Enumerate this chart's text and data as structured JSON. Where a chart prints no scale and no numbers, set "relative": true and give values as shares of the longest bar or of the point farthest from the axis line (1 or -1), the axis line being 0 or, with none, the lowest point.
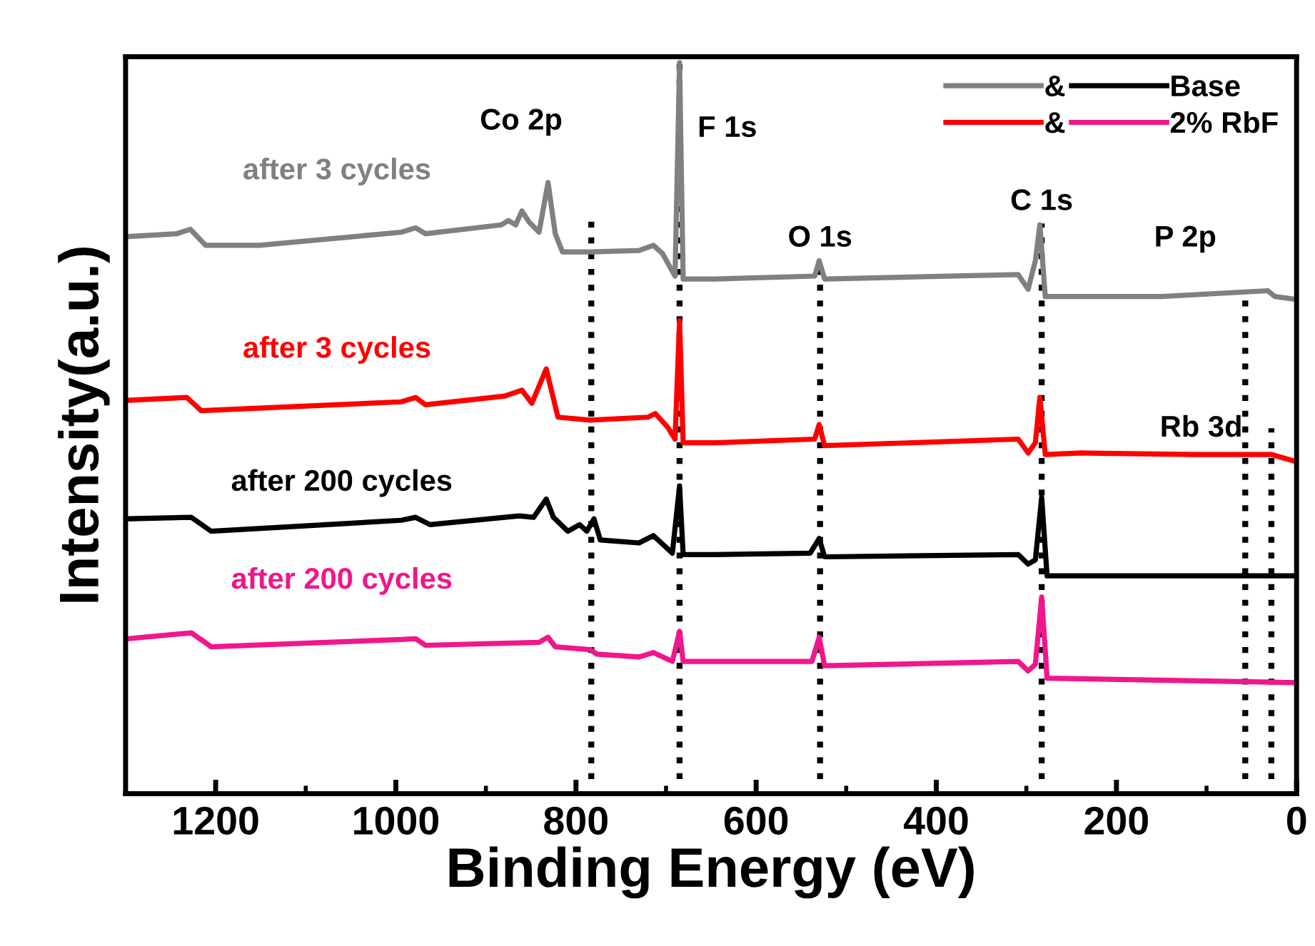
{
  "chart_data": {
    "type": "line",
    "relative": true,
    "xlabel": "Binding Energy (eV)",
    "ylabel": "Intensity(a.u.)",
    "xlim": [
      1300,
      0
    ],
    "xticks": [
      1200,
      {
        "value": 1100,
        "label": null
      },
      1000,
      {
        "value": 900,
        "label": null
      },
      800,
      {
        "value": 700,
        "label": null
      },
      600,
      {
        "value": 500,
        "label": null
      },
      400,
      {
        "value": 300,
        "label": null
      },
      200,
      {
        "value": 100,
        "label": null
      },
      0
    ],
    "legend": "top right",
    "grid": false,
    "marker": "none",
    "line_style": "solid",
    "annotations": [
      "&",
      "Base",
      "&",
      "2% RbF"
    ],
    "ref_lines": [
      {
        "axis": "x",
        "value": 783,
        "label": "Co 2p",
        "color": "#000000",
        "line_style": "dotted"
      },
      {
        "axis": "x",
        "value": 685,
        "label": "F 1s",
        "color": "#000000",
        "line_style": "dotted"
      },
      {
        "axis": "x",
        "value": 529,
        "label": "O 1s",
        "color": "#000000",
        "line_style": "dotted"
      },
      {
        "axis": "x",
        "value": 283,
        "label": "C 1s",
        "color": "#000000",
        "line_style": "dotted"
      },
      {
        "axis": "x",
        "value": 57,
        "label": "P 2p",
        "color": "#000000",
        "line_style": "dotted"
      },
      {
        "axis": "x",
        "value": 28,
        "label": "Rb 3d",
        "color": "#000000",
        "line_style": "dotted"
      }
    ],
    "series": [
      {
        "name": "after 3 cycles",
        "color": "#808080",
        "x": [
          1298,
          1243,
          1228,
          1211,
          1152,
          994,
          978,
          967,
          883,
          875,
          867,
          860,
          852,
          841,
          831,
          823,
          815,
          784,
          730,
          714,
          704,
          690,
          685,
          681,
          646,
          535,
          530,
          524,
          309,
          298,
          290,
          285,
          279,
          150,
          32,
          24,
          0
        ],
        "values": [
          0.762,
          0.766,
          0.772,
          0.75,
          0.75,
          0.768,
          0.774,
          0.766,
          0.778,
          0.784,
          0.778,
          0.797,
          0.782,
          0.768,
          0.836,
          0.766,
          0.741,
          0.741,
          0.743,
          0.75,
          0.739,
          0.708,
          1.0,
          0.704,
          0.704,
          0.708,
          0.729,
          0.704,
          0.71,
          0.69,
          0.729,
          0.778,
          0.68,
          0.68,
          0.688,
          0.68,
          0.676
        ]
      },
      {
        "name": "after 3 cycles",
        "color": "#ff0000",
        "x": [
          1298,
          1232,
          1216,
          994,
          978,
          967,
          879,
          860,
          849,
          833,
          820,
          784,
          720,
          712,
          698,
          690,
          685,
          681,
          646,
          535,
          530,
          524,
          309,
          298,
          290,
          285,
          279,
          239,
          111,
          28,
          0
        ],
        "values": [
          0.538,
          0.542,
          0.524,
          0.536,
          0.542,
          0.532,
          0.544,
          0.552,
          0.534,
          0.581,
          0.515,
          0.511,
          0.515,
          0.52,
          0.501,
          0.485,
          0.647,
          0.48,
          0.48,
          0.485,
          0.505,
          0.476,
          0.485,
          0.466,
          0.48,
          0.542,
          0.464,
          0.466,
          0.464,
          0.464,
          0.454
        ]
      },
      {
        "name": "after 200 cycles",
        "color": "#000000",
        "x": [
          1298,
          1227,
          1205,
          994,
          978,
          962,
          863,
          847,
          833,
          825,
          809,
          796,
          788,
          780,
          773,
          730,
          714,
          693,
          685,
          681,
          646,
          540,
          530,
          524,
          309,
          298,
          290,
          283,
          277,
          0
        ],
        "values": [
          0.376,
          0.378,
          0.359,
          0.374,
          0.378,
          0.368,
          0.38,
          0.378,
          0.403,
          0.378,
          0.359,
          0.368,
          0.359,
          0.376,
          0.347,
          0.343,
          0.353,
          0.329,
          0.421,
          0.327,
          0.327,
          0.329,
          0.349,
          0.324,
          0.327,
          0.314,
          0.32,
          0.405,
          0.298,
          0.298
        ]
      },
      {
        "name": "after 200 cycles",
        "color": "#f0168c",
        "x": [
          1298,
          1227,
          1205,
          994,
          978,
          967,
          841,
          831,
          823,
          784,
          777,
          730,
          714,
          693,
          685,
          681,
          646,
          538,
          530,
          524,
          309,
          298,
          290,
          283,
          277,
          0
        ],
        "values": [
          0.212,
          0.22,
          0.201,
          0.211,
          0.212,
          0.203,
          0.207,
          0.214,
          0.201,
          0.197,
          0.191,
          0.187,
          0.193,
          0.181,
          0.222,
          0.181,
          0.181,
          0.181,
          0.214,
          0.175,
          0.181,
          0.168,
          0.177,
          0.269,
          0.158,
          0.152
        ]
      }
    ]
  }
}
